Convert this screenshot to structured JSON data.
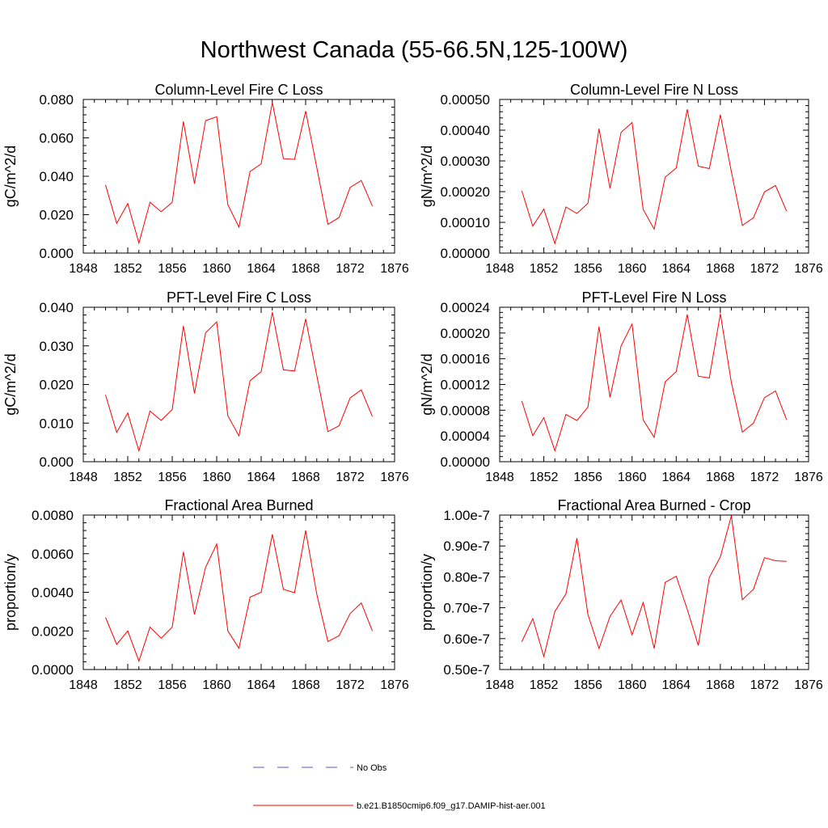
{
  "page_title": "Northwest Canada (55-66.5N,125-100W)",
  "legend": {
    "items": [
      {
        "label": "No Obs",
        "color": "#5a5ab4",
        "dash": true
      },
      {
        "label": "b.e21.B1850cmip6.f09_g17.DAMIP-hist-aer.001",
        "color": "#ff0000",
        "dash": false
      }
    ]
  },
  "chart_data": [
    {
      "type": "line",
      "title": "Column-Level Fire C Loss",
      "xlabel": "",
      "ylabel": "gC/m^2/d",
      "xlim": [
        1848,
        1876
      ],
      "xticks": [
        1848,
        1852,
        1856,
        1860,
        1864,
        1868,
        1872,
        1876
      ],
      "ylim": [
        0,
        0.08
      ],
      "yticks": [
        0,
        0.02,
        0.04,
        0.06,
        0.08
      ],
      "ytick_labels": [
        "0.000",
        "0.020",
        "0.040",
        "0.060",
        "0.080"
      ],
      "x": [
        1850,
        1851,
        1852,
        1853,
        1854,
        1855,
        1856,
        1857,
        1858,
        1859,
        1860,
        1861,
        1862,
        1863,
        1864,
        1865,
        1866,
        1867,
        1868,
        1869,
        1870,
        1871,
        1872,
        1873,
        1874
      ],
      "series": [
        {
          "color": "#ff0000",
          "values": [
            0.0355,
            0.0155,
            0.0258,
            0.0052,
            0.0265,
            0.0215,
            0.0265,
            0.0685,
            0.0362,
            0.069,
            0.071,
            0.0252,
            0.0135,
            0.0425,
            0.0465,
            0.0785,
            0.0492,
            0.0488,
            0.074,
            0.0445,
            0.015,
            0.0185,
            0.0342,
            0.0378,
            0.0245
          ]
        }
      ]
    },
    {
      "type": "line",
      "title": "Column-Level Fire N Loss",
      "xlabel": "",
      "ylabel": "gN/m^2/d",
      "xlim": [
        1848,
        1876
      ],
      "xticks": [
        1848,
        1852,
        1856,
        1860,
        1864,
        1868,
        1872,
        1876
      ],
      "ylim": [
        0,
        0.0005
      ],
      "yticks": [
        0,
        0.0001,
        0.0002,
        0.0003,
        0.0004,
        0.0005
      ],
      "ytick_labels": [
        "0.00000",
        "0.00010",
        "0.00020",
        "0.00030",
        "0.00040",
        "0.00050"
      ],
      "x": [
        1850,
        1851,
        1852,
        1853,
        1854,
        1855,
        1856,
        1857,
        1858,
        1859,
        1860,
        1861,
        1862,
        1863,
        1864,
        1865,
        1866,
        1867,
        1868,
        1869,
        1870,
        1871,
        1872,
        1873,
        1874
      ],
      "series": [
        {
          "color": "#ff0000",
          "values": [
            0.000203,
            8.8e-05,
            0.000143,
            3.1e-05,
            0.00015,
            0.000129,
            0.000162,
            0.000405,
            0.000211,
            0.000393,
            0.000425,
            0.000142,
            7.8e-05,
            0.000247,
            0.000277,
            0.000468,
            0.000283,
            0.000275,
            0.00045,
            0.000265,
            9e-05,
            0.000115,
            0.000199,
            0.00022,
            0.000137
          ]
        }
      ]
    },
    {
      "type": "line",
      "title": "PFT-Level Fire C Loss",
      "xlabel": "",
      "ylabel": "gC/m^2/d",
      "xlim": [
        1848,
        1876
      ],
      "xticks": [
        1848,
        1852,
        1856,
        1860,
        1864,
        1868,
        1872,
        1876
      ],
      "ylim": [
        0,
        0.04
      ],
      "yticks": [
        0,
        0.01,
        0.02,
        0.03,
        0.04
      ],
      "ytick_labels": [
        "0.000",
        "0.010",
        "0.020",
        "0.030",
        "0.040"
      ],
      "x": [
        1850,
        1851,
        1852,
        1853,
        1854,
        1855,
        1856,
        1857,
        1858,
        1859,
        1860,
        1861,
        1862,
        1863,
        1864,
        1865,
        1866,
        1867,
        1868,
        1869,
        1870,
        1871,
        1872,
        1873,
        1874
      ],
      "series": [
        {
          "color": "#ff0000",
          "values": [
            0.0173,
            0.0076,
            0.0126,
            0.0028,
            0.0131,
            0.0107,
            0.0135,
            0.0352,
            0.0177,
            0.0334,
            0.0362,
            0.0119,
            0.0067,
            0.021,
            0.0233,
            0.0387,
            0.0238,
            0.0235,
            0.037,
            0.0223,
            0.0078,
            0.0093,
            0.0165,
            0.0186,
            0.0117
          ]
        }
      ]
    },
    {
      "type": "line",
      "title": "PFT-Level Fire N Loss",
      "xlabel": "",
      "ylabel": "gN/m^2/d",
      "xlim": [
        1848,
        1876
      ],
      "xticks": [
        1848,
        1852,
        1856,
        1860,
        1864,
        1868,
        1872,
        1876
      ],
      "ylim": [
        0,
        0.00024
      ],
      "yticks": [
        0,
        4e-05,
        8e-05,
        0.00012,
        0.00016,
        0.0002,
        0.00024
      ],
      "ytick_labels": [
        "0.00000",
        "0.00004",
        "0.00008",
        "0.00012",
        "0.00016",
        "0.00020",
        "0.00024"
      ],
      "x": [
        1850,
        1851,
        1852,
        1853,
        1854,
        1855,
        1856,
        1857,
        1858,
        1859,
        1860,
        1861,
        1862,
        1863,
        1864,
        1865,
        1866,
        1867,
        1868,
        1869,
        1870,
        1871,
        1872,
        1873,
        1874
      ],
      "series": [
        {
          "color": "#ff0000",
          "values": [
            9.45e-05,
            4.05e-05,
            6.85e-05,
            1.7e-05,
            7.35e-05,
            6.4e-05,
            8.5e-05,
            0.00021,
            0.0001,
            0.00018,
            0.000214,
            6.5e-05,
            3.8e-05,
            0.000124,
            0.00014,
            0.000229,
            0.000133,
            0.00013,
            0.00023,
            0.000123,
            4.6e-05,
            6e-05,
            9.95e-05,
            0.00011,
            6.55e-05
          ]
        }
      ]
    },
    {
      "type": "line",
      "title": "Fractional Area Burned",
      "xlabel": "",
      "ylabel": "proportion/y",
      "xlim": [
        1848,
        1876
      ],
      "xticks": [
        1848,
        1852,
        1856,
        1860,
        1864,
        1868,
        1872,
        1876
      ],
      "ylim": [
        0,
        0.008
      ],
      "yticks": [
        0,
        0.002,
        0.004,
        0.006,
        0.008
      ],
      "ytick_labels": [
        "0.0000",
        "0.0020",
        "0.0040",
        "0.0060",
        "0.0080"
      ],
      "x": [
        1850,
        1851,
        1852,
        1853,
        1854,
        1855,
        1856,
        1857,
        1858,
        1859,
        1860,
        1861,
        1862,
        1863,
        1864,
        1865,
        1866,
        1867,
        1868,
        1869,
        1870,
        1871,
        1872,
        1873,
        1874
      ],
      "series": [
        {
          "color": "#ff0000",
          "values": [
            0.0027,
            0.0013,
            0.002,
            0.00043,
            0.0022,
            0.00162,
            0.0022,
            0.0061,
            0.00285,
            0.0053,
            0.0065,
            0.002,
            0.0011,
            0.00375,
            0.004,
            0.007,
            0.00415,
            0.00398,
            0.0072,
            0.0039,
            0.00145,
            0.00175,
            0.0029,
            0.00345,
            0.002
          ]
        }
      ]
    },
    {
      "type": "line",
      "title": "Fractional Area Burned - Crop",
      "xlabel": "",
      "ylabel": "proportion/y",
      "xlim": [
        1848,
        1876
      ],
      "xticks": [
        1848,
        1852,
        1856,
        1860,
        1864,
        1868,
        1872,
        1876
      ],
      "ylim": [
        5e-08,
        1e-07
      ],
      "yticks": [
        5e-08,
        6e-08,
        7e-08,
        8e-08,
        9e-08,
        1e-07
      ],
      "ytick_labels": [
        "0.50e-7",
        "0.60e-7",
        "0.70e-7",
        "0.80e-7",
        "0.90e-7",
        "1.00e-7"
      ],
      "x": [
        1850,
        1851,
        1852,
        1853,
        1854,
        1855,
        1856,
        1857,
        1858,
        1859,
        1860,
        1861,
        1862,
        1863,
        1864,
        1865,
        1866,
        1867,
        1868,
        1869,
        1870,
        1871,
        1872,
        1873,
        1874
      ],
      "series": [
        {
          "color": "#ff0000",
          "values": [
            5.9e-08,
            6.65e-08,
            5.42e-08,
            6.88e-08,
            7.45e-08,
            9.25e-08,
            6.78e-08,
            5.68e-08,
            6.72e-08,
            7.25e-08,
            6.12e-08,
            7.17e-08,
            5.68e-08,
            7.82e-08,
            8.02e-08,
            6.95e-08,
            5.78e-08,
            7.98e-08,
            8.65e-08,
            9.98e-08,
            7.26e-08,
            7.6e-08,
            8.62e-08,
            8.52e-08,
            8.5e-08
          ]
        }
      ]
    }
  ]
}
